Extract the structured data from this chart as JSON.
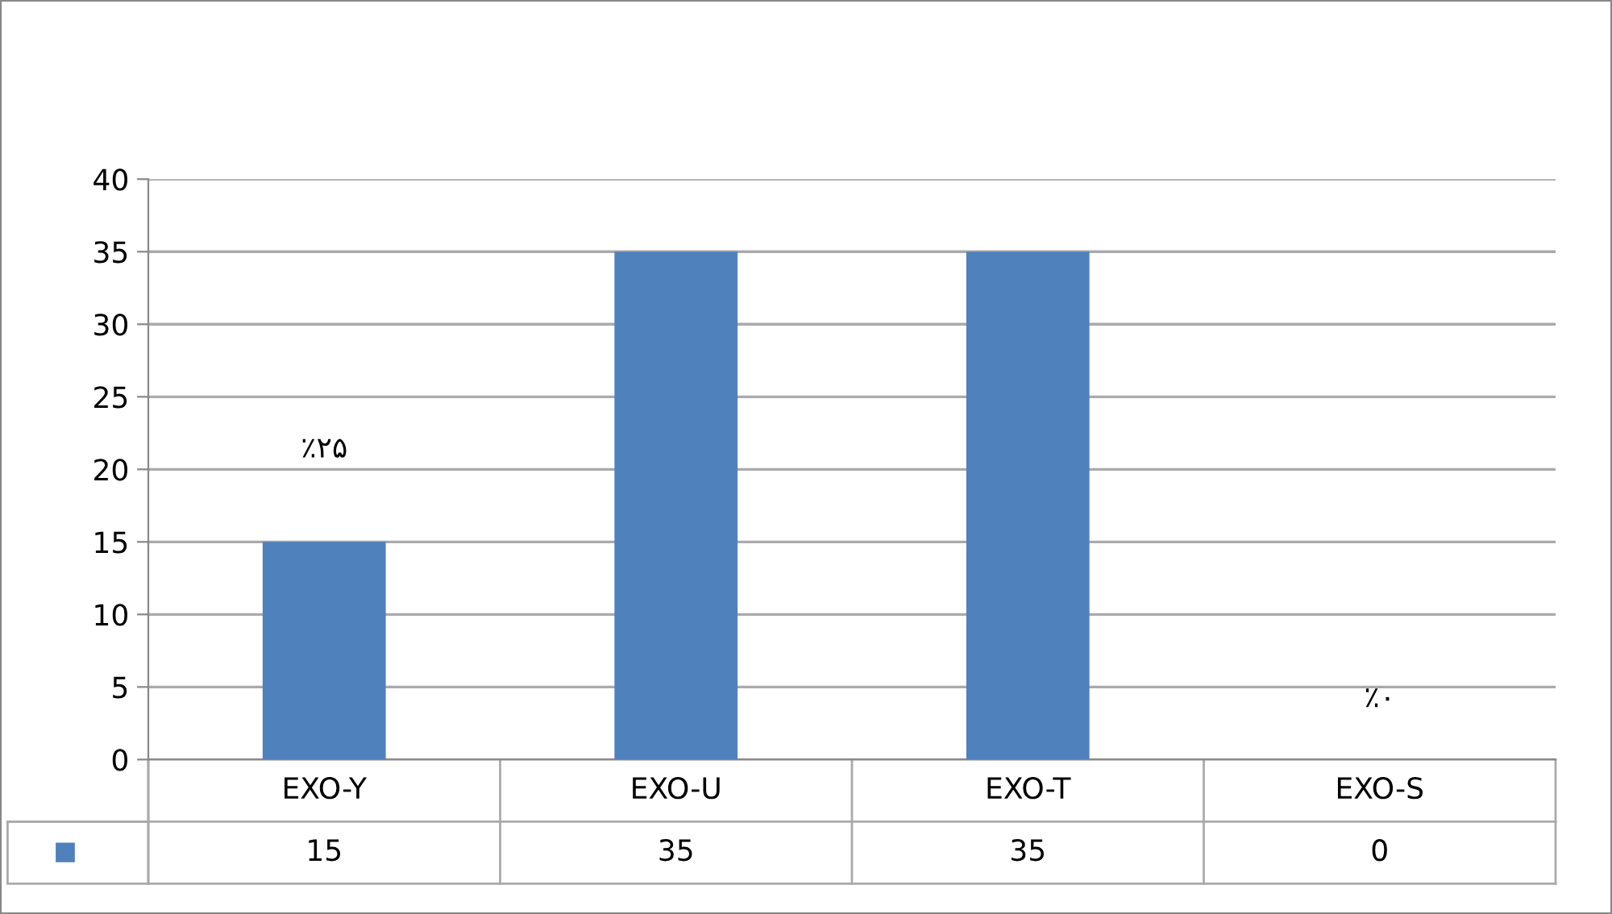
{
  "chart_data": {
    "type": "bar",
    "categories": [
      "EXO-Y",
      "EXO-U",
      "EXO-T",
      "EXO-S"
    ],
    "values": [
      15,
      35,
      35,
      0
    ],
    "color": "#4f81bd",
    "ylim": [
      0,
      40
    ],
    "yticks": [
      0,
      5,
      10,
      15,
      20,
      25,
      30,
      35,
      40
    ],
    "grid": "y",
    "data_labels": true,
    "annotations": [
      "٪۲۵",
      "٪۰"
    ]
  }
}
